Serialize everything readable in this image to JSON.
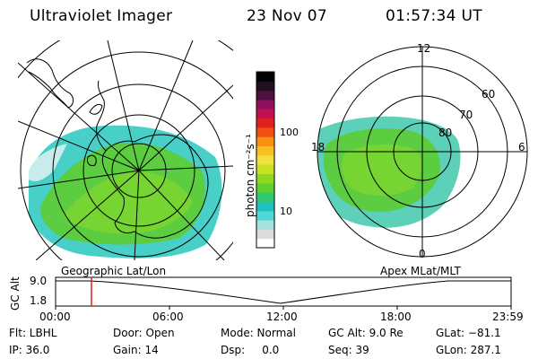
{
  "header": {
    "title": "Ultraviolet Imager",
    "date": "23 Nov 07",
    "time": "01:57:34 UT"
  },
  "colorbar": {
    "unit_label": "photon cm⁻²s⁻¹",
    "ticks": [
      {
        "label": "100",
        "value": 100
      },
      {
        "label": "10",
        "value": 10
      }
    ],
    "colors": [
      "#ffffff",
      "#dcdcdc",
      "#a8e0e0",
      "#50d8d8",
      "#20c0c0",
      "#30c870",
      "#60d030",
      "#90d820",
      "#c8e020",
      "#f0e040",
      "#f8c020",
      "#f89010",
      "#f05010",
      "#e02020",
      "#c01050",
      "#901060",
      "#501040",
      "#201020",
      "#000000"
    ]
  },
  "left_panel": {
    "caption": "Geographic Lat/Lon"
  },
  "right_panel": {
    "caption": "Apex MLat/MLT",
    "mlt_labels": {
      "top": "12",
      "bottom": "0",
      "left": "18",
      "right": "6"
    },
    "mlat_labels": [
      "60",
      "70",
      "80"
    ]
  },
  "altitude_plot": {
    "ylabel": "GC Alt",
    "yticks": [
      "9.0",
      "1.8"
    ],
    "xticks": [
      "00:00",
      "06:00",
      "12:00",
      "18:00",
      "23:59"
    ],
    "marker_color": "#e02020"
  },
  "info": [
    {
      "key": "flt",
      "text": "Flt: LBHL"
    },
    {
      "key": "door",
      "text": "Door: Open"
    },
    {
      "key": "mode",
      "text": "Mode: Normal"
    },
    {
      "key": "gcalt",
      "text": "GC Alt: 9.0 Re"
    },
    {
      "key": "glat",
      "text": "GLat: −81.1"
    },
    {
      "key": "ip",
      "text": "IP: 36.0"
    },
    {
      "key": "gain",
      "text": "Gain: 14"
    },
    {
      "key": "dsp",
      "text": "Dsp:     0.0"
    },
    {
      "key": "seq",
      "text": "Seq: 39"
    },
    {
      "key": "glon",
      "text": "GLon: 287.1"
    }
  ]
}
